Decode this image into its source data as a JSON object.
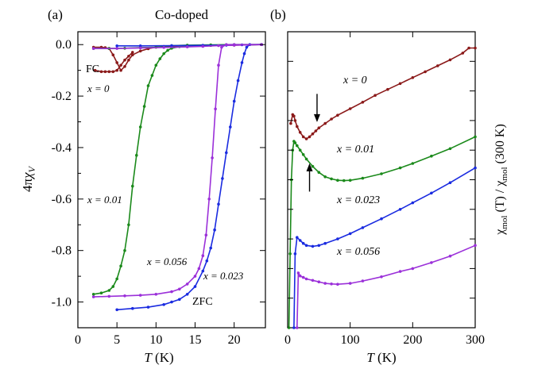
{
  "chart_data": [
    {
      "type": "line",
      "panel_label": "(a)",
      "title": "Co-doped",
      "xlabel": "T (K)",
      "ylabel": "4πχV",
      "xlim": [
        0,
        24
      ],
      "ylim": [
        -1.1,
        0.05
      ],
      "x_ticks": [
        0,
        5,
        10,
        15,
        20
      ],
      "y_ticks": [
        0.0,
        -0.2,
        -0.4,
        -0.6,
        -0.8,
        -1.0
      ],
      "y_tick_labels": [
        "0.0",
        "-0.2",
        "-0.4",
        "-0.6",
        "-0.8",
        "-1.0"
      ],
      "annotations": [
        "FC",
        "ZFC",
        "x = 0",
        "x = 0.01",
        "x = 0.056",
        "x = 0.023"
      ],
      "series": [
        {
          "label": "x = 0",
          "color": "#8b1a1a",
          "mode": "FC",
          "x": [
            2,
            3,
            3.5,
            4,
            4.5,
            5,
            5.5,
            6,
            6.5,
            7,
            8,
            9,
            10,
            12,
            14,
            17,
            20,
            23.5
          ],
          "y": [
            -0.01,
            -0.01,
            -0.012,
            -0.015,
            -0.04,
            -0.07,
            -0.1,
            -0.085,
            -0.06,
            -0.04,
            -0.025,
            -0.016,
            -0.01,
            -0.007,
            -0.005,
            -0.003,
            -0.002,
            0.0
          ]
        },
        {
          "label": "x = 0",
          "color": "#8b1a1a",
          "mode": "ZFC",
          "x": [
            2.2,
            3,
            3.5,
            4,
            4.5,
            5,
            5.5,
            6,
            6.5,
            7
          ],
          "y": [
            -0.1,
            -0.105,
            -0.105,
            -0.105,
            -0.105,
            -0.1,
            -0.08,
            -0.06,
            -0.045,
            -0.03
          ]
        },
        {
          "label": "x = 0.01",
          "color": "#1b8a1b",
          "mode": "FC",
          "x": [
            2,
            4,
            6,
            8,
            10,
            11,
            12,
            14,
            17,
            20,
            23.5
          ],
          "y": [
            -0.015,
            -0.015,
            -0.014,
            -0.012,
            -0.01,
            -0.007,
            -0.004,
            -0.002,
            -0.001,
            0.0,
            0.0
          ]
        },
        {
          "label": "x = 0.01",
          "color": "#1b8a1b",
          "mode": "ZFC",
          "x": [
            2,
            3,
            4,
            4.5,
            5,
            5.5,
            6,
            6.5,
            7,
            7.5,
            8,
            8.5,
            9,
            9.5,
            10,
            10.5,
            11,
            11.5,
            12,
            13,
            14,
            16,
            19,
            23.5
          ],
          "y": [
            -0.97,
            -0.965,
            -0.955,
            -0.94,
            -0.91,
            -0.86,
            -0.8,
            -0.7,
            -0.55,
            -0.43,
            -0.32,
            -0.24,
            -0.16,
            -0.12,
            -0.08,
            -0.055,
            -0.035,
            -0.022,
            -0.014,
            -0.008,
            -0.005,
            -0.003,
            -0.001,
            0.0
          ]
        },
        {
          "label": "x = 0.023",
          "color": "#1a2be0",
          "mode": "FC",
          "x": [
            5,
            8,
            12,
            16,
            19,
            21,
            23.5
          ],
          "y": [
            -0.005,
            -0.005,
            -0.004,
            -0.003,
            -0.002,
            -0.001,
            0.0
          ]
        },
        {
          "label": "x = 0.023",
          "color": "#1a2be0",
          "mode": "ZFC",
          "x": [
            5,
            7,
            9,
            11,
            12,
            13,
            14,
            15,
            16,
            16.5,
            17,
            17.5,
            18,
            18.5,
            19,
            19.5,
            20,
            20.5,
            21,
            21.3,
            21.6,
            22,
            23.5
          ],
          "y": [
            -1.03,
            -1.025,
            -1.02,
            -1.01,
            -1.0,
            -0.99,
            -0.97,
            -0.94,
            -0.88,
            -0.84,
            -0.79,
            -0.72,
            -0.62,
            -0.52,
            -0.42,
            -0.32,
            -0.22,
            -0.14,
            -0.07,
            -0.035,
            -0.01,
            0.0,
            0.0
          ]
        },
        {
          "label": "x = 0.056",
          "color": "#9b30d9",
          "mode": "FC",
          "x": [
            2,
            5,
            8,
            11,
            14,
            16,
            18,
            20,
            23.5
          ],
          "y": [
            -0.015,
            -0.015,
            -0.013,
            -0.011,
            -0.009,
            -0.007,
            -0.004,
            -0.002,
            0.0
          ]
        },
        {
          "label": "x = 0.056",
          "color": "#9b30d9",
          "mode": "ZFC",
          "x": [
            2,
            4,
            6,
            8,
            10,
            12,
            13,
            14,
            15,
            15.5,
            16,
            16.4,
            16.8,
            17.2,
            17.6,
            18,
            18.4,
            19,
            20,
            23.5
          ],
          "y": [
            -0.98,
            -0.978,
            -0.976,
            -0.974,
            -0.97,
            -0.96,
            -0.95,
            -0.93,
            -0.9,
            -0.87,
            -0.82,
            -0.74,
            -0.6,
            -0.44,
            -0.25,
            -0.08,
            -0.01,
            0.0,
            0.0,
            0.0
          ]
        }
      ]
    },
    {
      "type": "line",
      "panel_label": "(b)",
      "xlabel": "T (K)",
      "ylabel": "χmol (T) / χmol (300 K)",
      "xlim": [
        0,
        300
      ],
      "ylim": [
        0,
        10
      ],
      "x_ticks": [
        0,
        100,
        200,
        300
      ],
      "y_tick_labels_shown": false,
      "annotations": [
        "x = 0",
        "x = 0.01",
        "x = 0.023",
        "x = 0.056"
      ],
      "arrows": [
        {
          "direction": "down",
          "x": 47,
          "y_from": 7.9,
          "y_to": 7.0
        },
        {
          "direction": "up",
          "x": 35,
          "y_from": 4.6,
          "y_to": 5.5
        }
      ],
      "series": [
        {
          "label": "x = 0",
          "color": "#8b1a1a",
          "x": [
            5,
            8,
            10,
            12,
            15,
            20,
            25,
            30,
            35,
            40,
            45,
            50,
            60,
            70,
            80,
            100,
            120,
            140,
            160,
            180,
            200,
            220,
            240,
            260,
            280,
            290,
            300
          ],
          "y": [
            6.9,
            7.2,
            7.15,
            7.0,
            6.8,
            6.6,
            6.45,
            6.38,
            6.45,
            6.55,
            6.65,
            6.75,
            6.9,
            7.05,
            7.18,
            7.4,
            7.62,
            7.85,
            8.05,
            8.25,
            8.45,
            8.65,
            8.85,
            9.05,
            9.28,
            9.45,
            9.45
          ]
        },
        {
          "label": "x = 0.01",
          "color": "#1b8a1b",
          "x": [
            2,
            4,
            6,
            8,
            10,
            12,
            15,
            20,
            25,
            30,
            40,
            50,
            60,
            70,
            80,
            90,
            100,
            120,
            150,
            180,
            200,
            230,
            260,
            300
          ],
          "y": [
            0,
            2.5,
            5.0,
            6.0,
            6.3,
            6.25,
            6.15,
            6.0,
            5.85,
            5.7,
            5.45,
            5.25,
            5.1,
            5.03,
            4.98,
            4.97,
            4.98,
            5.05,
            5.2,
            5.4,
            5.55,
            5.8,
            6.05,
            6.45
          ]
        },
        {
          "label": "x = 0.023",
          "color": "#1a2be0",
          "x": [
            10,
            12,
            15,
            20,
            25,
            30,
            40,
            50,
            60,
            80,
            100,
            120,
            150,
            180,
            200,
            230,
            260,
            300
          ],
          "y": [
            0,
            2.5,
            3.05,
            2.95,
            2.85,
            2.78,
            2.75,
            2.78,
            2.85,
            3.0,
            3.18,
            3.38,
            3.68,
            4.0,
            4.22,
            4.55,
            4.9,
            5.4
          ]
        },
        {
          "label": "x = 0.056",
          "color": "#9b30d9",
          "x": [
            15,
            17,
            20,
            25,
            30,
            40,
            50,
            60,
            70,
            80,
            100,
            120,
            150,
            180,
            200,
            230,
            260,
            300
          ],
          "y": [
            0,
            1.85,
            1.75,
            1.7,
            1.65,
            1.6,
            1.55,
            1.5,
            1.48,
            1.47,
            1.5,
            1.58,
            1.72,
            1.9,
            2.0,
            2.2,
            2.42,
            2.78
          ]
        }
      ]
    }
  ]
}
